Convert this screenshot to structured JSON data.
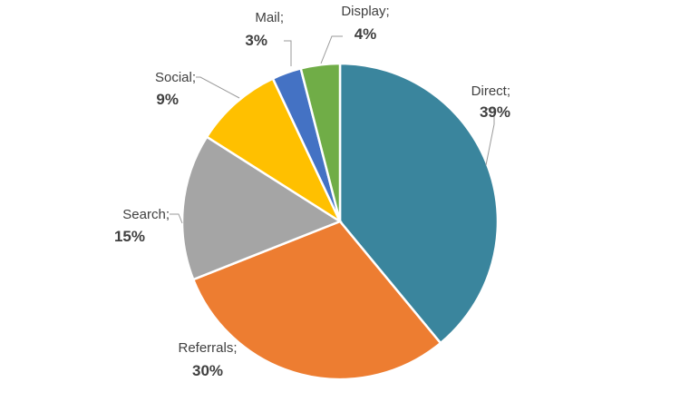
{
  "chart_data": {
    "type": "pie",
    "slices": [
      {
        "label": "Direct;",
        "percent_label": "39%",
        "value": 39,
        "color": "#3a859d"
      },
      {
        "label": "Referrals;",
        "percent_label": "30%",
        "value": 30,
        "color": "#ed7d31"
      },
      {
        "label": "Search;",
        "percent_label": "15%",
        "value": 15,
        "color": "#a5a5a5"
      },
      {
        "label": "Social;",
        "percent_label": "9%",
        "value": 9,
        "color": "#ffc000"
      },
      {
        "label": "Mail;",
        "percent_label": "3%",
        "value": 3,
        "color": "#4472c4"
      },
      {
        "label": "Display;",
        "percent_label": "4%",
        "value": 4,
        "color": "#70ad47"
      }
    ],
    "start_angle": "12 o'clock",
    "direction": "clockwise",
    "legend": "none"
  }
}
